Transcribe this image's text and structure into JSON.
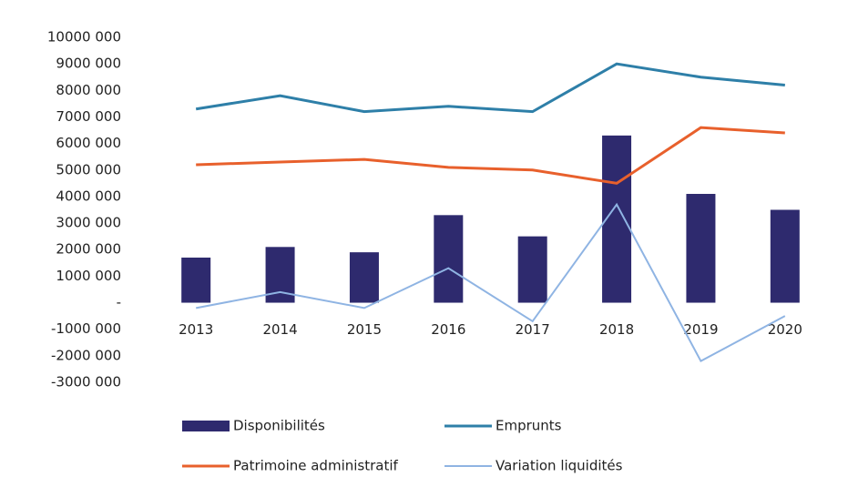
{
  "chart_data": {
    "type": "bar",
    "categories": [
      "2013",
      "2014",
      "2015",
      "2016",
      "2017",
      "2018",
      "2019",
      "2020"
    ],
    "series": [
      {
        "name": "Disponibilités",
        "type": "bar",
        "color": "#2e2a6e",
        "values": [
          1700000,
          2100000,
          1900000,
          3300000,
          2500000,
          6300000,
          4100000,
          3500000
        ]
      },
      {
        "name": "Emprunts",
        "type": "line",
        "color": "#2e7fa8",
        "values": [
          7300000,
          7800000,
          7200000,
          7400000,
          7200000,
          9000000,
          8500000,
          8200000
        ]
      },
      {
        "name": "Patrimoine administratif",
        "type": "line",
        "color": "#e8602c",
        "values": [
          5200000,
          5300000,
          5400000,
          5100000,
          5000000,
          4500000,
          6600000,
          6400000
        ]
      },
      {
        "name": "Variation liquidités",
        "type": "line",
        "color": "#8fb4e3",
        "values": [
          -200000,
          400000,
          -200000,
          1300000,
          -700000,
          3700000,
          -2200000,
          -500000
        ]
      }
    ],
    "ylim": [
      -3000000,
      10000000
    ],
    "yticks": [
      {
        "value": 10000000,
        "label": "10000 000"
      },
      {
        "value": 9000000,
        "label": "9000 000"
      },
      {
        "value": 8000000,
        "label": "8000 000"
      },
      {
        "value": 7000000,
        "label": "7000 000"
      },
      {
        "value": 6000000,
        "label": "6000 000"
      },
      {
        "value": 5000000,
        "label": "5000 000"
      },
      {
        "value": 4000000,
        "label": "4000 000"
      },
      {
        "value": 3000000,
        "label": "3000 000"
      },
      {
        "value": 2000000,
        "label": "2000 000"
      },
      {
        "value": 1000000,
        "label": "1000 000"
      },
      {
        "value": 0,
        "label": "-"
      },
      {
        "value": -1000000,
        "label": "-1000 000"
      },
      {
        "value": -2000000,
        "label": "-2000 000"
      },
      {
        "value": -3000000,
        "label": "-3000 000"
      }
    ],
    "grid": false,
    "legend": "bottom"
  }
}
